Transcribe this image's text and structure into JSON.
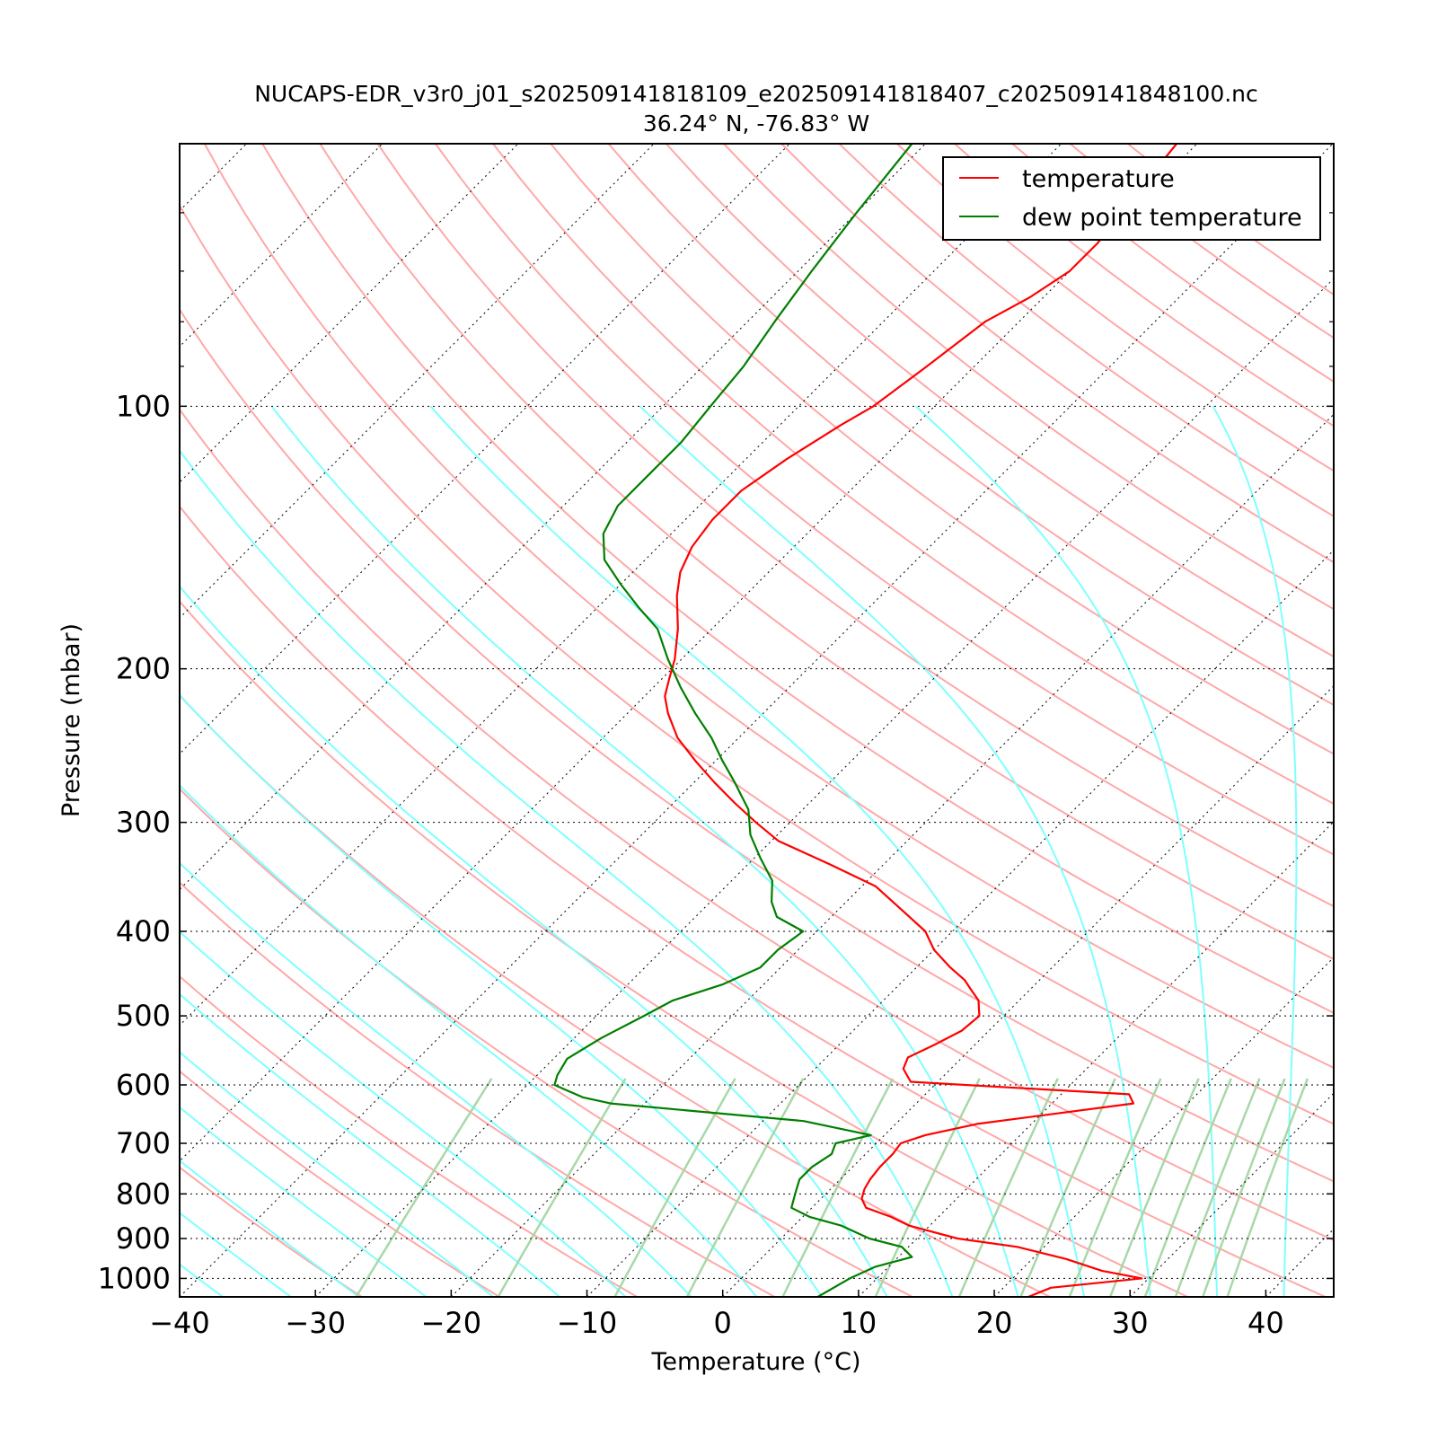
{
  "chart_data": {
    "type": "line",
    "title": "NUCAPS-EDR_v3r0_j01_s202509141818109_e202509141818407_c202509141848100.nc",
    "subtitle": "36.24° N, -76.83° W",
    "xlabel": "Temperature (°C)",
    "ylabel": "Pressure (mbar)",
    "xlim": [
      -40,
      45
    ],
    "ylim": [
      1050,
      50
    ],
    "y_scale": "log",
    "skew": true,
    "grid": true,
    "legend_position": "top-right",
    "x_ticks": [
      "−40",
      "−30",
      "−20",
      "−10",
      "0",
      "10",
      "20",
      "30",
      "40"
    ],
    "y_ticks": [
      "100",
      "200",
      "300",
      "400",
      "500",
      "600",
      "700",
      "800",
      "900",
      "1000"
    ],
    "series": [
      {
        "name": "temperature",
        "color": "#ff0000",
        "points": [
          [
            1050,
            22.5
          ],
          [
            1025,
            23.5
          ],
          [
            1000,
            29.5
          ],
          [
            980,
            26
          ],
          [
            950,
            22.5
          ],
          [
            920,
            18
          ],
          [
            900,
            13
          ],
          [
            870,
            8.5
          ],
          [
            850,
            6.5
          ],
          [
            830,
            4
          ],
          [
            810,
            3
          ],
          [
            790,
            2.5
          ],
          [
            770,
            2.2
          ],
          [
            745,
            2
          ],
          [
            720,
            2
          ],
          [
            700,
            1.8
          ],
          [
            685,
            3
          ],
          [
            665,
            6
          ],
          [
            630,
            16
          ],
          [
            615,
            15
          ],
          [
            595,
            -2
          ],
          [
            575,
            -3.5
          ],
          [
            558,
            -4
          ],
          [
            540,
            -3
          ],
          [
            520,
            -2
          ],
          [
            500,
            -1.8
          ],
          [
            480,
            -3
          ],
          [
            465,
            -4.5
          ],
          [
            455,
            -5.5
          ],
          [
            440,
            -7.5
          ],
          [
            420,
            -10
          ],
          [
            400,
            -12
          ],
          [
            380,
            -15
          ],
          [
            355,
            -19
          ],
          [
            335,
            -24
          ],
          [
            315,
            -29.5
          ],
          [
            300,
            -32.5
          ],
          [
            285,
            -35.5
          ],
          [
            270,
            -38.5
          ],
          [
            255,
            -41.5
          ],
          [
            240,
            -44.5
          ],
          [
            225,
            -47
          ],
          [
            215,
            -48.5
          ],
          [
            205,
            -49.5
          ],
          [
            195,
            -50.5
          ],
          [
            180,
            -52.5
          ],
          [
            165,
            -55
          ],
          [
            155,
            -56.5
          ],
          [
            145,
            -57.5
          ],
          [
            135,
            -58
          ],
          [
            125,
            -58
          ],
          [
            115,
            -57
          ],
          [
            105,
            -55.5
          ],
          [
            100,
            -54.5
          ],
          [
            90,
            -53.5
          ],
          [
            80,
            -52.5
          ],
          [
            75,
            -51
          ],
          [
            70,
            -50
          ],
          [
            65,
            -50
          ],
          [
            60,
            -50.5
          ],
          [
            55,
            -51
          ],
          [
            50,
            -51.5
          ]
        ]
      },
      {
        "name": "dew point temperature",
        "color": "#007f00",
        "points": [
          [
            1050,
            7
          ],
          [
            1000,
            8
          ],
          [
            970,
            9
          ],
          [
            945,
            11
          ],
          [
            920,
            9.5
          ],
          [
            900,
            6.5
          ],
          [
            870,
            3.5
          ],
          [
            850,
            0.5
          ],
          [
            830,
            -1.5
          ],
          [
            810,
            -2
          ],
          [
            790,
            -2.5
          ],
          [
            770,
            -3
          ],
          [
            745,
            -3
          ],
          [
            720,
            -2.5
          ],
          [
            700,
            -3
          ],
          [
            685,
            -1
          ],
          [
            660,
            -7
          ],
          [
            630,
            -22.5
          ],
          [
            620,
            -25
          ],
          [
            600,
            -28
          ],
          [
            585,
            -28.5
          ],
          [
            560,
            -29
          ],
          [
            530,
            -28
          ],
          [
            500,
            -26.5
          ],
          [
            480,
            -25.5
          ],
          [
            460,
            -23
          ],
          [
            440,
            -21.5
          ],
          [
            420,
            -21.5
          ],
          [
            400,
            -21
          ],
          [
            385,
            -24
          ],
          [
            370,
            -25.5
          ],
          [
            350,
            -27
          ],
          [
            330,
            -29.5
          ],
          [
            310,
            -32
          ],
          [
            290,
            -34
          ],
          [
            270,
            -37
          ],
          [
            255,
            -39.5
          ],
          [
            240,
            -42
          ],
          [
            225,
            -45
          ],
          [
            210,
            -48
          ],
          [
            195,
            -51
          ],
          [
            180,
            -54
          ],
          [
            170,
            -57
          ],
          [
            160,
            -60
          ],
          [
            150,
            -63
          ],
          [
            140,
            -65
          ],
          [
            130,
            -66
          ],
          [
            120,
            -66
          ],
          [
            110,
            -66
          ],
          [
            100,
            -66.5
          ],
          [
            90,
            -67
          ],
          [
            80,
            -68
          ],
          [
            70,
            -69
          ],
          [
            60,
            -70
          ],
          [
            50,
            -71
          ]
        ]
      }
    ],
    "reference_lines": {
      "dry_adiabat_color": "#ffa8a8",
      "moist_adiabat_color": "#7fffff",
      "mixing_ratio_color": "#a8d8a8"
    }
  }
}
